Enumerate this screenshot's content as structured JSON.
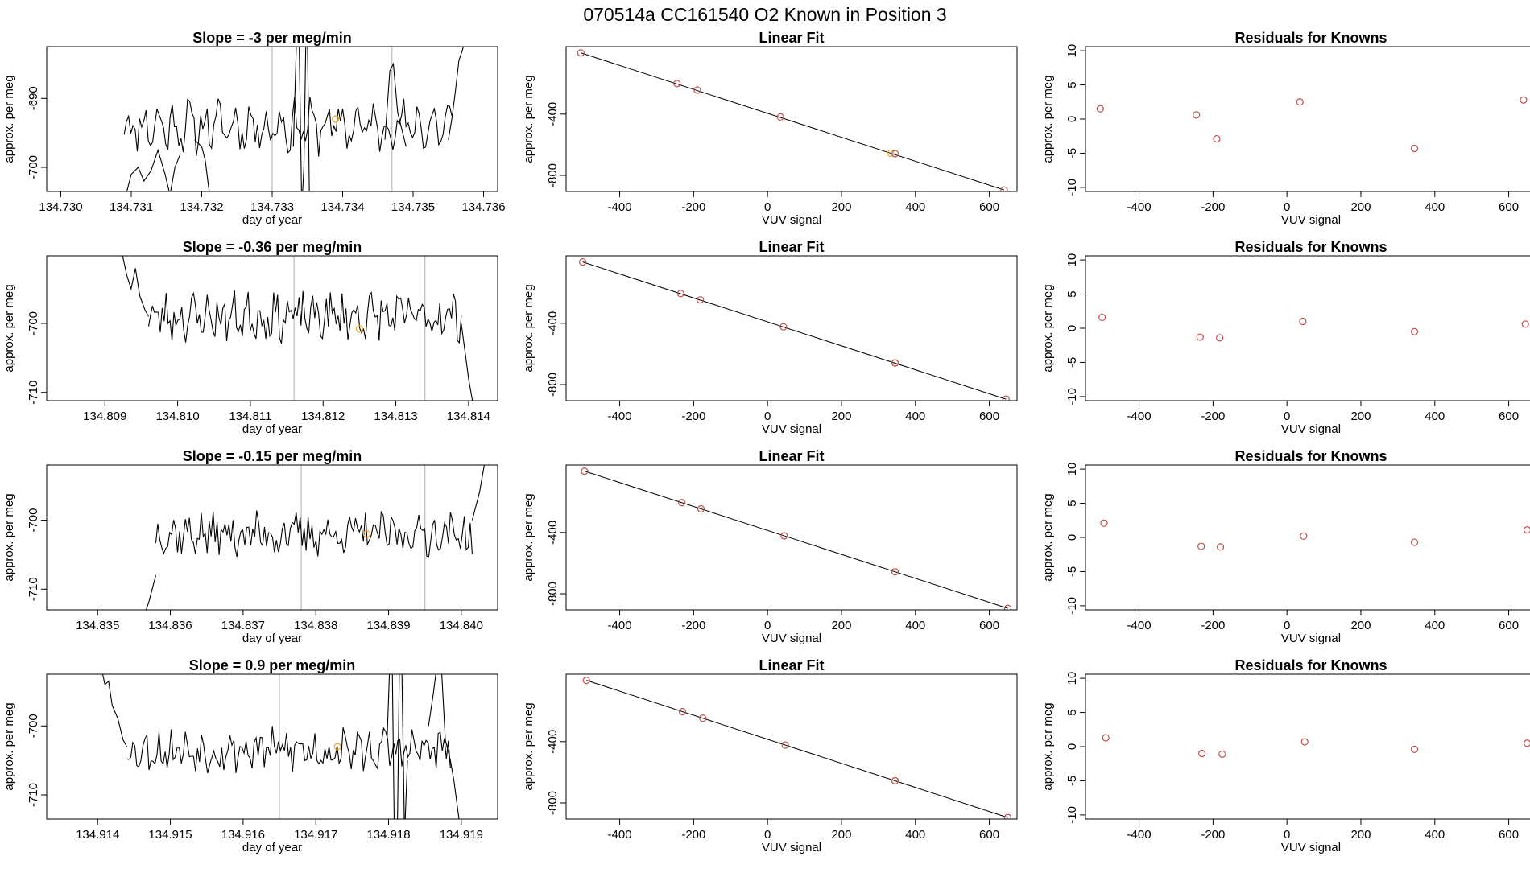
{
  "figure": {
    "title": "070514a      CC161540    O2 Known in Position  3",
    "line_color": "#000000",
    "vline_color": "#bbbbbb",
    "known_color": "#c0504d",
    "highlight_color": "#f5a623"
  },
  "chart_data": [
    {
      "type": "line",
      "row": 0,
      "col": 0,
      "title": "Slope =  -3  per meg/min",
      "xlabel": "day of year",
      "ylabel": "approx. per meg",
      "xlim": [
        134.7298,
        134.7362
      ],
      "ylim": [
        -703.5,
        -682.5
      ],
      "xticks": [
        "134.730",
        "134.731",
        "134.732",
        "134.733",
        "134.734",
        "134.735",
        "134.736"
      ],
      "yticks": [
        "-690",
        "-700"
      ],
      "vlines": [
        134.733,
        134.7347
      ],
      "highlight_point": [
        134.7339,
        -693.0
      ],
      "segment": {
        "x0": 134.7309,
        "x1": 134.73555,
        "n": 150,
        "base": -694,
        "amp": 2.2,
        "noise": 2.4,
        "seed": 11
      },
      "series": [
        {
          "points": [
            [
              134.7309,
              -705
            ],
            [
              134.731,
              -701
            ],
            [
              134.7311,
              -700
            ],
            [
              134.73118,
              -702
            ],
            [
              134.73128,
              -700.5
            ],
            [
              134.73138,
              -697.5
            ],
            [
              134.73148,
              -701
            ],
            [
              134.73155,
              -704
            ],
            [
              134.73162,
              -700
            ],
            [
              134.7317,
              -698
            ]
          ]
        },
        {
          "points": [
            [
              134.7319,
              -696
            ],
            [
              134.732,
              -697
            ],
            [
              134.73205,
              -699
            ],
            [
              134.7321,
              -703
            ],
            [
              134.73215,
              -706
            ]
          ]
        },
        {
          "points": [
            [
              134.7333,
              -697
            ],
            [
              134.73335,
              -680
            ],
            [
              134.73338,
              -680
            ],
            [
              134.73342,
              -706
            ],
            [
              134.73345,
              -700
            ],
            [
              134.73348,
              -680
            ],
            [
              134.7335,
              -680
            ],
            [
              134.73353,
              -706
            ]
          ]
        },
        {
          "points": [
            [
              134.7346,
              -696
            ],
            [
              134.73467,
              -686
            ],
            [
              134.73472,
              -685
            ],
            [
              134.73478,
              -692
            ],
            [
              134.7349,
              -697
            ]
          ]
        },
        {
          "points": [
            [
              134.7355,
              -696
            ],
            [
              134.73555,
              -693
            ],
            [
              134.7356,
              -689
            ],
            [
              134.73565,
              -684.5
            ],
            [
              134.7357,
              -683
            ],
            [
              134.73575,
              -681
            ]
          ]
        }
      ]
    },
    {
      "type": "scatter",
      "row": 0,
      "col": 1,
      "title": "Linear Fit",
      "xlabel": "VUV signal",
      "ylabel": "approx. per meg",
      "xlim": [
        -545,
        675
      ],
      "ylim": [
        -905,
        40
      ],
      "xticks": [
        -400,
        -200,
        0,
        200,
        400,
        600
      ],
      "yticks": [
        -400,
        -800
      ],
      "fit_line": [
        [
          -505,
          -0.5
        ],
        [
          640,
          -895
        ]
      ],
      "points": [
        [
          -505,
          -0.5
        ],
        [
          -245,
          -200.8
        ],
        [
          -190,
          -243.2
        ],
        [
          35,
          -418.9
        ],
        [
          345,
          -658
        ],
        [
          640,
          -895
        ]
      ],
      "highlight_point": [
        333,
        -655
      ]
    },
    {
      "type": "scatter",
      "row": 0,
      "col": 2,
      "title": "Residuals for Knowns",
      "xlabel": "VUV signal",
      "ylabel": "approx. per meg",
      "xlim": [
        -545,
        675
      ],
      "ylim": [
        -10.6,
        10.6
      ],
      "xticks": [
        -400,
        -200,
        0,
        200,
        400,
        600
      ],
      "yticks": [
        10,
        5,
        0,
        -5,
        -10
      ],
      "points": [
        [
          -505,
          1.5
        ],
        [
          -245,
          0.6
        ],
        [
          -190,
          -2.9
        ],
        [
          35,
          2.5
        ],
        [
          345,
          -4.3
        ],
        [
          640,
          2.8
        ]
      ]
    },
    {
      "type": "line",
      "row": 1,
      "col": 0,
      "title": "Slope =  -0.36  per meg/min",
      "xlabel": "day of year",
      "ylabel": "approx. per meg",
      "xlim": [
        134.8082,
        134.8144
      ],
      "ylim": [
        -711.2,
        -690.2
      ],
      "xticks": [
        "134.809",
        "134.810",
        "134.811",
        "134.812",
        "134.813",
        "134.814"
      ],
      "yticks": [
        "-700",
        "-710"
      ],
      "vlines": [
        134.8116,
        134.8134
      ],
      "highlight_point": [
        134.8125,
        -700.8
      ],
      "segment": {
        "x0": 134.8096,
        "x1": 134.8139,
        "n": 160,
        "base": -699,
        "amp": 1.2,
        "noise": 2.8,
        "seed": 23
      },
      "series": [
        {
          "points": [
            [
              134.80924,
              -690
            ],
            [
              134.8093,
              -693
            ],
            [
              134.80936,
              -695
            ],
            [
              134.80942,
              -692
            ],
            [
              134.80948,
              -696
            ],
            [
              134.80955,
              -698
            ],
            [
              134.8096,
              -699
            ]
          ]
        },
        {
          "points": [
            [
              134.8139,
              -700
            ],
            [
              134.81395,
              -704
            ],
            [
              134.814,
              -708
            ],
            [
              134.81405,
              -711
            ],
            [
              134.8141,
              -713
            ]
          ]
        }
      ]
    },
    {
      "type": "scatter",
      "row": 1,
      "col": 1,
      "title": "Linear Fit",
      "xlabel": "VUV signal",
      "ylabel": "approx. per meg",
      "xlim": [
        -545,
        675
      ],
      "ylim": [
        -905,
        40
      ],
      "xticks": [
        -400,
        -200,
        0,
        200,
        400,
        600
      ],
      "yticks": [
        -400,
        -800
      ],
      "fit_line": [
        [
          -500,
          0
        ],
        [
          645,
          -895
        ]
      ],
      "points": [
        [
          -500,
          0
        ],
        [
          -235,
          -205.9
        ],
        [
          -182,
          -247.2
        ],
        [
          43,
          -423.0
        ],
        [
          345,
          -658.9
        ],
        [
          645,
          -895
        ]
      ],
      "highlight_point": [
        345,
        -658.9
      ]
    },
    {
      "type": "scatter",
      "row": 1,
      "col": 2,
      "title": "Residuals for Knowns",
      "xlabel": "VUV signal",
      "ylabel": "approx. per meg",
      "xlim": [
        -545,
        675
      ],
      "ylim": [
        -10.6,
        10.6
      ],
      "xticks": [
        -400,
        -200,
        0,
        200,
        400,
        600
      ],
      "yticks": [
        10,
        5,
        0,
        -5,
        -10
      ],
      "points": [
        [
          -500,
          1.6
        ],
        [
          -235,
          -1.3
        ],
        [
          -182,
          -1.4
        ],
        [
          43,
          1.0
        ],
        [
          345,
          -0.5
        ],
        [
          645,
          0.6
        ]
      ]
    },
    {
      "type": "line",
      "row": 2,
      "col": 0,
      "title": "Slope =  -0.15  per meg/min",
      "xlabel": "day of year",
      "ylabel": "approx. per meg",
      "xlim": [
        134.8343,
        134.8405
      ],
      "ylim": [
        -713.0,
        -692.0
      ],
      "xticks": [
        "134.835",
        "134.836",
        "134.837",
        "134.838",
        "134.839",
        "134.840"
      ],
      "yticks": [
        "-700",
        "-710"
      ],
      "vlines": [
        134.8378,
        134.8395
      ],
      "highlight_point": [
        134.8387,
        -702.0
      ],
      "segment": {
        "x0": 134.8358,
        "x1": 134.84015,
        "n": 160,
        "base": -702,
        "amp": 1.0,
        "noise": 2.6,
        "seed": 37
      },
      "series": [
        {
          "points": [
            [
              134.83565,
              -713.5
            ],
            [
              134.8357,
              -712
            ],
            [
              134.83575,
              -710
            ],
            [
              134.8358,
              -708
            ]
          ]
        },
        {
          "points": [
            [
              134.84015,
              -700
            ],
            [
              134.8402,
              -698
            ],
            [
              134.84025,
              -696
            ],
            [
              134.8403,
              -693
            ],
            [
              134.84035,
              -690
            ]
          ]
        }
      ]
    },
    {
      "type": "scatter",
      "row": 2,
      "col": 1,
      "title": "Linear Fit",
      "xlabel": "VUV signal",
      "ylabel": "approx. per meg",
      "xlim": [
        -545,
        675
      ],
      "ylim": [
        -905,
        40
      ],
      "xticks": [
        -400,
        -200,
        0,
        200,
        400,
        600
      ],
      "yticks": [
        -400,
        -800
      ],
      "fit_line": [
        [
          -495,
          0
        ],
        [
          650,
          -895
        ]
      ],
      "points": [
        [
          -495,
          0
        ],
        [
          -232,
          -205.6
        ],
        [
          -180,
          -246.2
        ],
        [
          45,
          -422.0
        ],
        [
          345,
          -656.5
        ],
        [
          650,
          -895
        ]
      ],
      "highlight_point": [
        345,
        -656.5
      ]
    },
    {
      "type": "scatter",
      "row": 2,
      "col": 2,
      "title": "Residuals for Knowns",
      "xlabel": "VUV signal",
      "ylabel": "approx. per meg",
      "xlim": [
        -545,
        675
      ],
      "ylim": [
        -10.6,
        10.6
      ],
      "xticks": [
        -400,
        -200,
        0,
        200,
        400,
        600
      ],
      "yticks": [
        10,
        5,
        0,
        -5,
        -10
      ],
      "points": [
        [
          -495,
          2.1
        ],
        [
          -232,
          -1.3
        ],
        [
          -180,
          -1.4
        ],
        [
          45,
          0.2
        ],
        [
          345,
          -0.7
        ],
        [
          650,
          1.1
        ]
      ]
    },
    {
      "type": "line",
      "row": 3,
      "col": 0,
      "title": "Slope =  0.9  per meg/min",
      "xlabel": "day of year",
      "ylabel": "approx. per meg",
      "xlim": [
        134.9133,
        134.9195
      ],
      "ylim": [
        -713.5,
        -692.5
      ],
      "xticks": [
        "134.914",
        "134.915",
        "134.916",
        "134.917",
        "134.918",
        "134.919"
      ],
      "yticks": [
        "-700",
        "-710"
      ],
      "vlines": [
        134.9165,
        134.9182
      ],
      "highlight_point": [
        134.9173,
        -703.0
      ],
      "segment": {
        "x0": 134.9144,
        "x1": 134.91885,
        "n": 160,
        "base": -703.5,
        "amp": 1.0,
        "noise": 2.6,
        "seed": 53
      },
      "series": [
        {
          "points": [
            [
              134.91406,
              -692
            ],
            [
              134.9141,
              -694
            ],
            [
              134.91415,
              -693.5
            ],
            [
              134.9142,
              -697
            ],
            [
              134.91428,
              -699
            ],
            [
              134.91435,
              -702
            ],
            [
              134.9144,
              -703
            ]
          ]
        },
        {
          "points": [
            [
              134.91798,
              -702
            ],
            [
              134.91802,
              -690
            ],
            [
              134.91805,
              -690
            ],
            [
              134.91808,
              -716
            ],
            [
              134.91812,
              -716
            ],
            [
              134.91815,
              -690
            ],
            [
              134.91818,
              -690
            ],
            [
              134.91822,
              -716
            ],
            [
              134.91826,
              -705
            ]
          ]
        },
        {
          "points": [
            [
              134.91855,
              -700
            ],
            [
              134.91862,
              -695
            ],
            [
              134.91868,
              -690
            ],
            [
              134.91872,
              -690
            ],
            [
              134.91878,
              -702
            ],
            [
              134.91885,
              -705
            ],
            [
              134.9189,
              -708
            ],
            [
              134.91895,
              -712
            ],
            [
              134.919,
              -716
            ]
          ]
        }
      ]
    },
    {
      "type": "scatter",
      "row": 3,
      "col": 1,
      "title": "Linear Fit",
      "xlabel": "VUV signal",
      "ylabel": "approx. per meg",
      "xlim": [
        -545,
        675
      ],
      "ylim": [
        -905,
        40
      ],
      "xticks": [
        -400,
        -200,
        0,
        200,
        400,
        600
      ],
      "yticks": [
        -400,
        -800
      ],
      "fit_line": [
        [
          -490,
          0
        ],
        [
          650,
          -895
        ]
      ],
      "points": [
        [
          -490,
          0
        ],
        [
          -230,
          -204.1
        ],
        [
          -175,
          -247.3
        ],
        [
          48,
          -422.3
        ],
        [
          345,
          -655.3
        ],
        [
          650,
          -895
        ]
      ],
      "highlight_point": [
        345,
        -655.3
      ]
    },
    {
      "type": "scatter",
      "row": 3,
      "col": 2,
      "title": "Residuals for Knowns",
      "xlabel": "VUV signal",
      "ylabel": "approx. per meg",
      "xlim": [
        -545,
        675
      ],
      "ylim": [
        -10.6,
        10.6
      ],
      "xticks": [
        -400,
        -200,
        0,
        200,
        400,
        600
      ],
      "yticks": [
        10,
        5,
        0,
        -5,
        -10
      ],
      "points": [
        [
          -490,
          1.3
        ],
        [
          -230,
          -1.0
        ],
        [
          -175,
          -1.1
        ],
        [
          48,
          0.7
        ],
        [
          345,
          -0.4
        ],
        [
          650,
          0.5
        ]
      ]
    }
  ]
}
